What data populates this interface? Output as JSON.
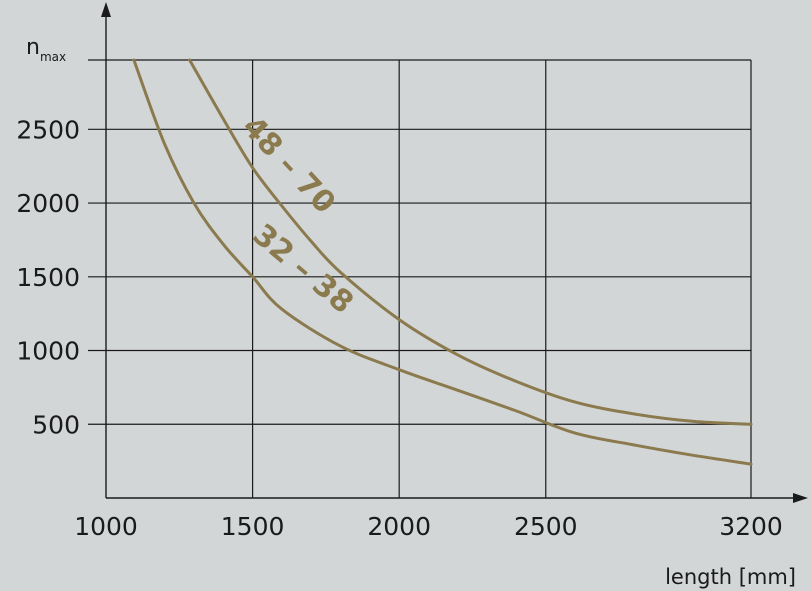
{
  "chart_data": {
    "type": "line",
    "title": "",
    "xlabel": "length [mm]",
    "ylabel_main": "n",
    "ylabel_sub": "max",
    "x_ticks": [
      1000,
      1500,
      2000,
      2500,
      3200
    ],
    "x_tick_labels": [
      "1000",
      "1500",
      "2000",
      "2500",
      "3200"
    ],
    "y_ticks": [
      500,
      1000,
      1500,
      2000,
      2500
    ],
    "y_tick_labels": [
      "500",
      "1000",
      "1500",
      "2000",
      "2500"
    ],
    "xlim": [
      1000,
      3200
    ],
    "ylim": [
      0,
      2970
    ],
    "grid": true,
    "curve_color": "#8b7a4e",
    "series": [
      {
        "name": "48 – 70",
        "x": [
          1285,
          1400,
          1500,
          1600,
          1700,
          1800,
          2000,
          2200,
          2400,
          2600,
          2800,
          3000,
          3200
        ],
        "y": [
          2970,
          2570,
          2240,
          1980,
          1740,
          1530,
          1210,
          970,
          790,
          650,
          570,
          520,
          500
        ]
      },
      {
        "name": "32 – 38",
        "x": [
          1095,
          1200,
          1300,
          1400,
          1500,
          1600,
          1800,
          2000,
          2200,
          2400,
          2600,
          2800,
          3000,
          3200
        ],
        "y": [
          2970,
          2400,
          2000,
          1720,
          1500,
          1280,
          1030,
          870,
          730,
          590,
          440,
          360,
          290,
          230
        ]
      }
    ]
  }
}
